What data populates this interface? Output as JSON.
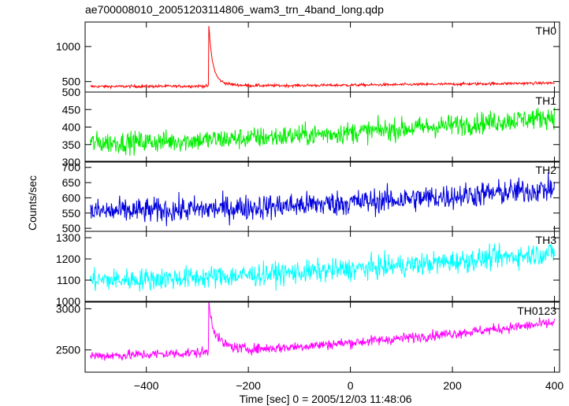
{
  "chart_data": {
    "type": "line",
    "title": "ae700008010_20051203114806_wam3_trn_4band_long.qdp",
    "xlabel": "Time [sec] 0 = 2005/12/03 11:48:06",
    "ylabel": "Counts/sec",
    "xlim": [
      -520,
      410
    ],
    "x_ticks": [
      -400,
      -200,
      0,
      200,
      400
    ],
    "x_tick_labels": [
      "−400",
      "−200",
      "0",
      "200",
      "400"
    ],
    "x_range_data": [
      -510,
      400
    ],
    "grid": false,
    "panels": [
      {
        "label": "TH0",
        "color": "#ff0000",
        "ylim": [
          350,
          1350
        ],
        "yticks": [
          500,
          1000
        ],
        "ytick_labels": [
          "500",
          "1000"
        ],
        "baseline_start": 430,
        "baseline_end": 480,
        "noise": 14,
        "burst": {
          "t0": -278,
          "peak": 1350,
          "decay": 7,
          "tail": 130,
          "tail_decay": 25
        }
      },
      {
        "label": "TH1",
        "color": "#00ee00",
        "ylim": [
          300,
          500
        ],
        "yticks": [
          300,
          350,
          400,
          450,
          500
        ],
        "ytick_labels": [
          "300",
          "350",
          "400",
          "450",
          "500"
        ],
        "baseline_start": 355,
        "baseline_end": 430,
        "noise": 22
      },
      {
        "label": "TH2",
        "color": "#0000dd",
        "ylim": [
          490,
          720
        ],
        "yticks": [
          500,
          550,
          600,
          650,
          700
        ],
        "ytick_labels": [
          "500",
          "550",
          "600",
          "650",
          "700"
        ],
        "baseline_start": 555,
        "baseline_end": 630,
        "noise": 30
      },
      {
        "label": "TH3",
        "color": "#00ffff",
        "ylim": [
          1000,
          1330
        ],
        "yticks": [
          1000,
          1100,
          1200,
          1300
        ],
        "ytick_labels": [
          "1000",
          "1100",
          "1200",
          "1300"
        ],
        "baseline_start": 1100,
        "baseline_end": 1230,
        "noise": 38
      },
      {
        "label": "TH0123",
        "color": "#ff00ff",
        "ylim": [
          2230,
          3080
        ],
        "yticks": [
          2500,
          3000
        ],
        "ytick_labels": [
          "2500",
          "3000"
        ],
        "baseline_start": 2430,
        "baseline_end": 2830,
        "noise": 45,
        "burst": {
          "t0": -278,
          "peak": 3080,
          "decay": 7,
          "tail": 300,
          "tail_decay": 25
        }
      }
    ]
  }
}
